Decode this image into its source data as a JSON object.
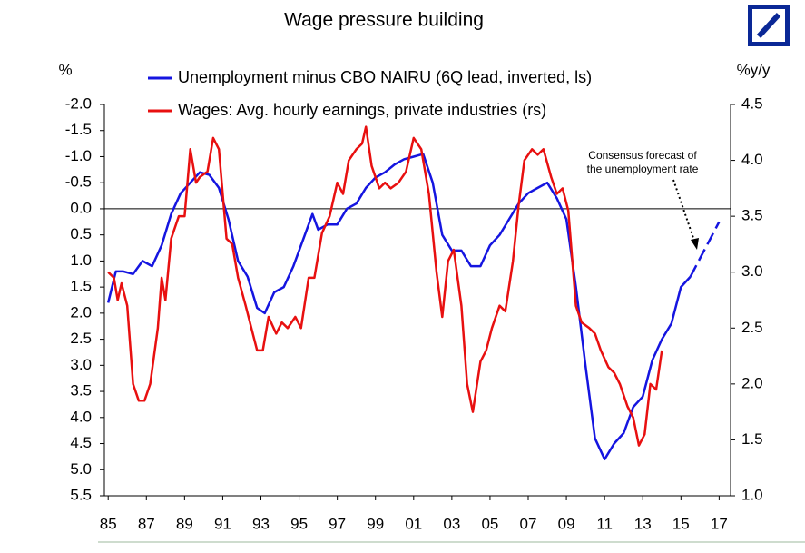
{
  "chart_data": {
    "type": "line",
    "title": "Wage pressure building",
    "ylabel": "%",
    "y2label": "%y/y",
    "annotation": [
      "Consensus forecast of",
      "the unemployment rate"
    ],
    "xlim": [
      1984.8,
      2017.6
    ],
    "xticks": [
      {
        "value": 1985,
        "label": "85"
      },
      {
        "value": 1987,
        "label": "87"
      },
      {
        "value": 1989,
        "label": "89"
      },
      {
        "value": 1991,
        "label": "91"
      },
      {
        "value": 1993,
        "label": "93"
      },
      {
        "value": 1995,
        "label": "95"
      },
      {
        "value": 1997,
        "label": "97"
      },
      {
        "value": 1999,
        "label": "99"
      },
      {
        "value": 2001,
        "label": "01"
      },
      {
        "value": 2003,
        "label": "03"
      },
      {
        "value": 2005,
        "label": "05"
      },
      {
        "value": 2007,
        "label": "07"
      },
      {
        "value": 2009,
        "label": "09"
      },
      {
        "value": 2011,
        "label": "11"
      },
      {
        "value": 2013,
        "label": "13"
      },
      {
        "value": 2015,
        "label": "15"
      },
      {
        "value": 2017,
        "label": "17"
      }
    ],
    "ylim": [
      -2,
      5.5
    ],
    "y_inverted": true,
    "yticks": [
      {
        "value": -2,
        "label": "-2.0"
      },
      {
        "value": -1.5,
        "label": "-1.5"
      },
      {
        "value": -1,
        "label": "-1.0"
      },
      {
        "value": -0.5,
        "label": "-0.5"
      },
      {
        "value": 0,
        "label": "0.0"
      },
      {
        "value": 0.5,
        "label": "0.5"
      },
      {
        "value": 1,
        "label": "1.0"
      },
      {
        "value": 1.5,
        "label": "1.5"
      },
      {
        "value": 2,
        "label": "2.0"
      },
      {
        "value": 2.5,
        "label": "2.5"
      },
      {
        "value": 3,
        "label": "3.0"
      },
      {
        "value": 3.5,
        "label": "3.5"
      },
      {
        "value": 4,
        "label": "4.0"
      },
      {
        "value": 4.5,
        "label": "4.5"
      },
      {
        "value": 5,
        "label": "5.0"
      },
      {
        "value": 5.5,
        "label": "5.5"
      }
    ],
    "y2lim": [
      1,
      4.5
    ],
    "y2ticks": [
      {
        "value": 4.5,
        "label": "4.5"
      },
      {
        "value": 4,
        "label": "4.0"
      },
      {
        "value": 3.5,
        "label": "3.5"
      },
      {
        "value": 3,
        "label": "3.0"
      },
      {
        "value": 2.5,
        "label": "2.5"
      },
      {
        "value": 2,
        "label": "2.0"
      },
      {
        "value": 1.5,
        "label": "1.5"
      },
      {
        "value": 1,
        "label": "1.0"
      }
    ],
    "series": [
      {
        "name": "Unemployment minus CBO NAIRU (6Q lead, inverted, ls)",
        "color": "#1515e0",
        "axis": "y",
        "x": [
          1985.0,
          1985.4,
          1985.8,
          1986.3,
          1986.8,
          1987.3,
          1987.8,
          1988.3,
          1988.8,
          1989.3,
          1989.8,
          1990.3,
          1990.8,
          1991.3,
          1991.8,
          1992.3,
          1992.8,
          1993.2,
          1993.7,
          1994.2,
          1994.7,
          1995.2,
          1995.7,
          1996.0,
          1996.5,
          1997.0,
          1997.5,
          1998.0,
          1998.5,
          1999.0,
          1999.5,
          2000.0,
          2000.5,
          2001.0,
          2001.5,
          2002.0,
          2002.5,
          2003.0,
          2003.5,
          2004.0,
          2004.5,
          2005.0,
          2005.5,
          2006.0,
          2006.5,
          2007.0,
          2007.5,
          2008.0,
          2008.5,
          2009.0,
          2009.5,
          2010.0,
          2010.5,
          2011.0,
          2011.5,
          2012.0,
          2012.5,
          2013.0,
          2013.5,
          2014.0,
          2014.5,
          2015.0,
          2015.5
        ],
        "values": [
          1.8,
          1.2,
          1.2,
          1.25,
          1.0,
          1.1,
          0.7,
          0.1,
          -0.3,
          -0.5,
          -0.7,
          -0.65,
          -0.4,
          0.2,
          1.0,
          1.3,
          1.9,
          2.0,
          1.6,
          1.5,
          1.1,
          0.6,
          0.1,
          0.4,
          0.3,
          0.3,
          0.0,
          -0.1,
          -0.4,
          -0.6,
          -0.7,
          -0.85,
          -0.95,
          -1.0,
          -1.05,
          -0.5,
          0.5,
          0.8,
          0.8,
          1.1,
          1.1,
          0.7,
          0.5,
          0.2,
          -0.1,
          -0.3,
          -0.4,
          -0.5,
          -0.2,
          0.2,
          1.5,
          3.0,
          4.4,
          4.8,
          4.5,
          4.3,
          3.8,
          3.6,
          2.9,
          2.5,
          2.2,
          1.5,
          1.3
        ]
      },
      {
        "name": "Wages: Avg. hourly earnings, private industries (rs)",
        "color": "#e81010",
        "axis": "y2",
        "x": [
          1985.0,
          1985.3,
          1985.5,
          1985.7,
          1986.0,
          1986.3,
          1986.6,
          1986.9,
          1987.2,
          1987.6,
          1987.8,
          1988.0,
          1988.3,
          1988.7,
          1989.0,
          1989.3,
          1989.6,
          1989.8,
          1990.2,
          1990.5,
          1990.8,
          1991.2,
          1991.5,
          1991.8,
          1992.2,
          1992.5,
          1992.8,
          1993.1,
          1993.4,
          1993.8,
          1994.1,
          1994.4,
          1994.8,
          1995.1,
          1995.5,
          1995.8,
          1996.2,
          1996.6,
          1997.0,
          1997.3,
          1997.6,
          1998.0,
          1998.3,
          1998.5,
          1998.8,
          1999.2,
          1999.5,
          1999.8,
          2000.2,
          2000.6,
          2001.0,
          2001.4,
          2001.8,
          2002.2,
          2002.5,
          2002.8,
          2003.1,
          2003.5,
          2003.8,
          2004.1,
          2004.5,
          2004.8,
          2005.1,
          2005.5,
          2005.8,
          2006.2,
          2006.5,
          2006.8,
          2007.2,
          2007.5,
          2007.8,
          2008.2,
          2008.5,
          2008.8,
          2009.1,
          2009.5,
          2009.8,
          2010.2,
          2010.5,
          2010.8,
          2011.2,
          2011.5,
          2011.8,
          2012.2,
          2012.5,
          2012.8,
          2013.1,
          2013.4,
          2013.7,
          2014.0
        ],
        "values": [
          3.0,
          2.95,
          2.75,
          2.9,
          2.7,
          2.0,
          1.85,
          1.85,
          2.0,
          2.5,
          2.95,
          2.75,
          3.3,
          3.5,
          3.5,
          4.1,
          3.8,
          3.85,
          3.9,
          4.2,
          4.1,
          3.3,
          3.25,
          2.95,
          2.7,
          2.5,
          2.3,
          2.3,
          2.6,
          2.45,
          2.55,
          2.5,
          2.6,
          2.5,
          2.95,
          2.95,
          3.35,
          3.5,
          3.8,
          3.7,
          4.0,
          4.1,
          4.15,
          4.3,
          3.95,
          3.75,
          3.8,
          3.75,
          3.8,
          3.9,
          4.2,
          4.1,
          3.7,
          3.0,
          2.6,
          3.1,
          3.2,
          2.7,
          2.0,
          1.75,
          2.2,
          2.3,
          2.5,
          2.7,
          2.65,
          3.1,
          3.6,
          4.0,
          4.1,
          4.05,
          4.1,
          3.85,
          3.7,
          3.75,
          3.55,
          2.7,
          2.55,
          2.5,
          2.45,
          2.3,
          2.15,
          2.1,
          2.0,
          1.8,
          1.7,
          1.45,
          1.55,
          2.0,
          1.95,
          2.3
        ]
      }
    ],
    "forecast": {
      "color": "#1515e0",
      "x": [
        2015.5,
        2016.0,
        2016.5,
        2017.0
      ],
      "values": [
        1.3,
        0.95,
        0.6,
        0.25
      ]
    }
  }
}
